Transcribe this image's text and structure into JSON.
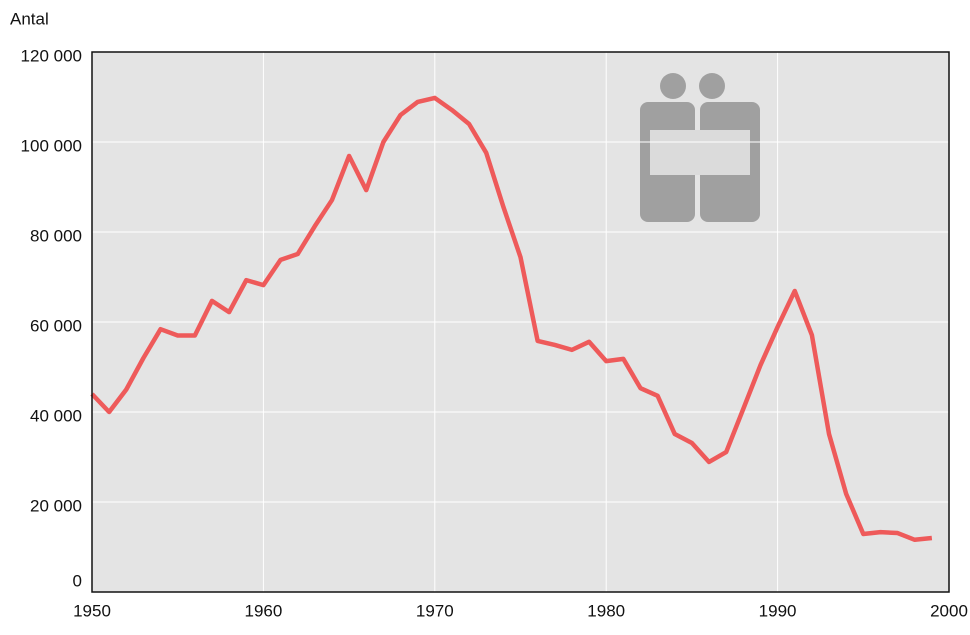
{
  "chart_data": {
    "type": "line",
    "y_label": "Antal",
    "x": [
      1950,
      1951,
      1952,
      1953,
      1954,
      1955,
      1956,
      1957,
      1958,
      1959,
      1960,
      1961,
      1962,
      1963,
      1964,
      1965,
      1966,
      1967,
      1968,
      1969,
      1970,
      1971,
      1972,
      1973,
      1974,
      1975,
      1976,
      1977,
      1978,
      1979,
      1980,
      1981,
      1982,
      1983,
      1984,
      1985,
      1986,
      1987,
      1988,
      1989,
      1990,
      1991,
      1992,
      1993,
      1994,
      1995,
      1996,
      1997,
      1998,
      1999
    ],
    "series": [
      {
        "color": "#ee5a5a",
        "values": [
          44000,
          40000,
          45000,
          52000,
          58400,
          57000,
          57000,
          64700,
          62200,
          69300,
          68200,
          73800,
          75100,
          81300,
          87100,
          96900,
          89300,
          100000,
          106000,
          108900,
          109800,
          107100,
          104000,
          97600,
          85600,
          74400,
          55800,
          54900,
          53800,
          55600,
          51300,
          51800,
          45300,
          43600,
          35100,
          33100,
          28900,
          31100,
          40700,
          50400,
          58900,
          66900,
          57100,
          35100,
          21800,
          12900,
          13300,
          13100,
          11600,
          12000
        ]
      }
    ],
    "xlim": [
      1950,
      2000
    ],
    "xticks": [
      1950,
      1960,
      1970,
      1980,
      1990,
      2000
    ],
    "ylim": [
      0,
      120000
    ],
    "yticks": [
      0,
      {
        "value": 20000,
        "label": "20 000"
      },
      {
        "value": 40000,
        "label": "40 000"
      },
      {
        "value": 60000,
        "label": "60 000"
      },
      {
        "value": 80000,
        "label": "80 000"
      },
      {
        "value": 100000,
        "label": "100 000"
      },
      {
        "value": 120000,
        "label": "120 000"
      }
    ],
    "grid": true
  }
}
